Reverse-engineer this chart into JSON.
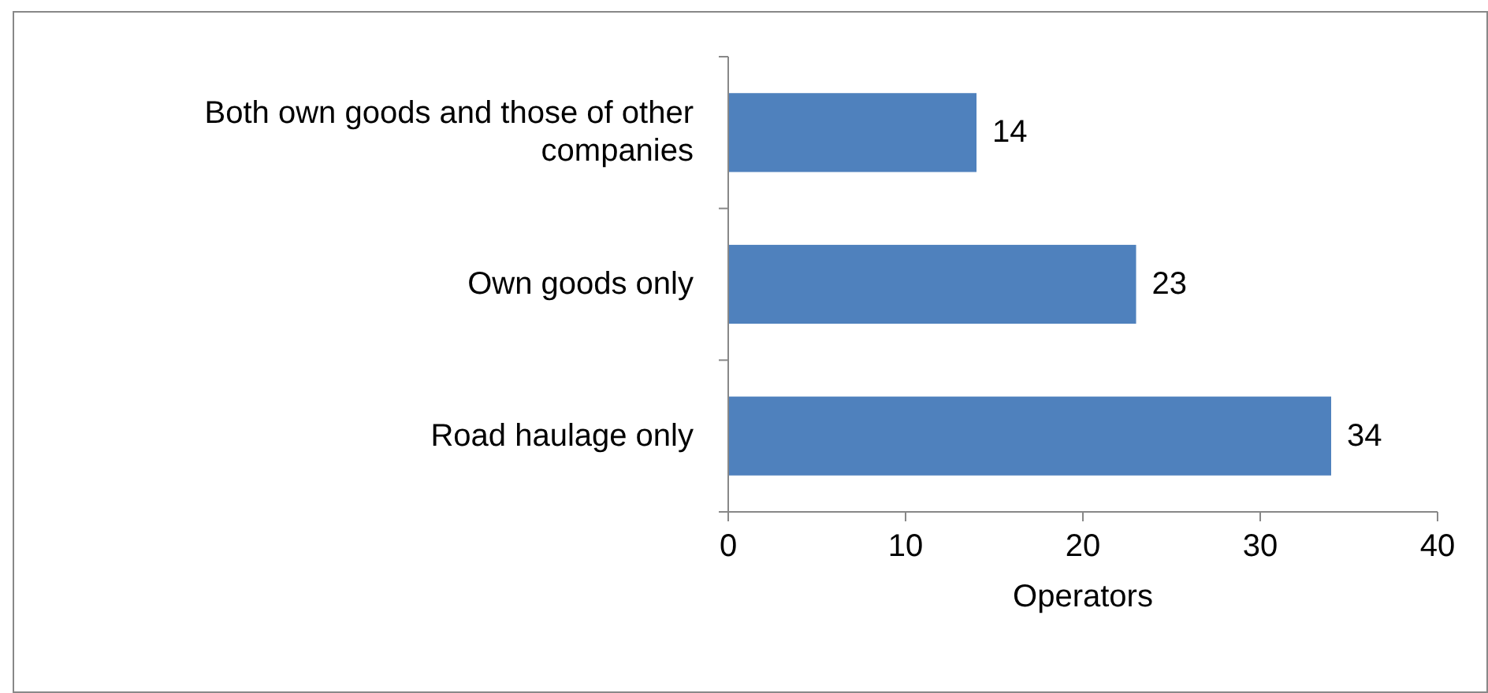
{
  "chart_data": {
    "type": "bar",
    "orientation": "horizontal",
    "xlabel": "Operators",
    "categories": [
      "Both own goods and those of other companies",
      "Own goods only",
      "Road haulage only"
    ],
    "values": [
      14,
      23,
      34
    ],
    "color": "#4f81bd",
    "xlim": [
      0,
      40
    ],
    "xticks": [
      0,
      10,
      20,
      30,
      40
    ],
    "data_labels": true
  }
}
